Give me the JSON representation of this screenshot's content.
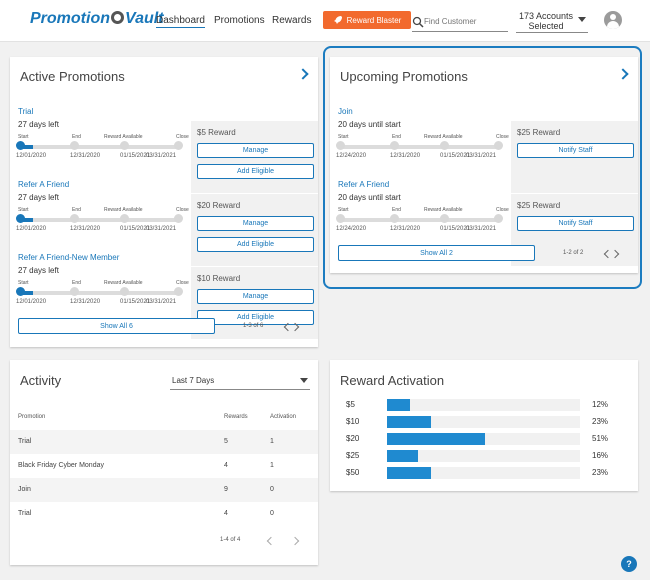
{
  "header": {
    "logo_left": "Promotion",
    "logo_right": "Vault",
    "nav": [
      "Dashboard",
      "Promotions",
      "Rewards"
    ],
    "reward_blaster": "Reward Blaster",
    "search_placeholder": "Find Customer",
    "accounts_line1": "173 Accounts",
    "accounts_line2": "Selected"
  },
  "active": {
    "title": "Active Promotions",
    "milestone_labels": [
      "Start",
      "End",
      "Reward Available",
      "Close"
    ],
    "rows": [
      {
        "name": "Trial",
        "days": "27 days left",
        "dates": [
          "12/01/2020",
          "12/31/2020",
          "01/15/2021",
          "03/31/2021"
        ],
        "reward": "$5 Reward",
        "btn1": "Manage",
        "btn2": "Add Eligible",
        "progress": 0.08
      },
      {
        "name": "Refer A Friend",
        "days": "27 days left",
        "dates": [
          "12/01/2020",
          "12/31/2020",
          "01/15/2021",
          "03/31/2021"
        ],
        "reward": "$20 Reward",
        "btn1": "Manage",
        "btn2": "Add Eligible",
        "progress": 0.08
      },
      {
        "name": "Refer A Friend-New Member",
        "days": "27 days left",
        "dates": [
          "12/01/2020",
          "12/31/2020",
          "01/15/2021",
          "03/31/2021"
        ],
        "reward": "$10 Reward",
        "btn1": "Manage",
        "btn2": "Add Eligible",
        "progress": 0.08
      }
    ],
    "show_all": "Show All 6",
    "pager": "1-3 of 6"
  },
  "upcoming": {
    "title": "Upcoming Promotions",
    "milestone_labels": [
      "Start",
      "End",
      "Reward Available",
      "Close"
    ],
    "rows": [
      {
        "name": "Join",
        "days": "20 days until start",
        "dates": [
          "12/24/2020",
          "12/31/2020",
          "01/15/2021",
          "03/31/2021"
        ],
        "reward": "$25 Reward",
        "btn1": "Notify Staff",
        "progress": 0
      },
      {
        "name": "Refer A Friend",
        "days": "20 days until start",
        "dates": [
          "12/24/2020",
          "12/31/2020",
          "01/15/2021",
          "03/31/2021"
        ],
        "reward": "$25 Reward",
        "btn1": "Notify Staff",
        "progress": 0
      }
    ],
    "show_all": "Show All 2",
    "pager": "1-2 of 2"
  },
  "activity": {
    "title": "Activity",
    "range": "Last 7 Days",
    "columns": [
      "Promotion",
      "Rewards",
      "Activation"
    ],
    "rows": [
      [
        "Trial",
        "5",
        "1"
      ],
      [
        "Black Friday Cyber Monday",
        "4",
        "1"
      ],
      [
        "Join",
        "9",
        "0"
      ],
      [
        "Trial",
        "4",
        "0"
      ]
    ],
    "pager": "1-4 of 4"
  },
  "reward_activation": {
    "title": "Reward Activation",
    "bars": [
      {
        "label": "$5",
        "pct": "12%",
        "value": 0.12
      },
      {
        "label": "$10",
        "pct": "23%",
        "value": 0.23
      },
      {
        "label": "$20",
        "pct": "51%",
        "value": 0.51
      },
      {
        "label": "$25",
        "pct": "16%",
        "value": 0.16
      },
      {
        "label": "$50",
        "pct": "23%",
        "value": 0.23
      }
    ]
  },
  "help": "?",
  "colors": {
    "accent": "#1977b9",
    "orange": "#f26a2e",
    "bar": "#1f8ad0"
  }
}
